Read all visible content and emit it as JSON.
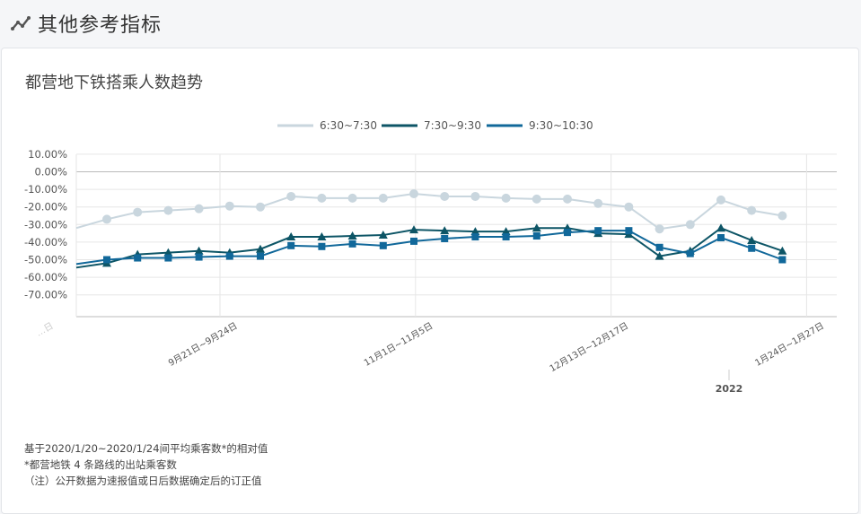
{
  "header": {
    "title": "其他参考指标",
    "icon": "line-chart-icon"
  },
  "card": {
    "title": "都营地下铁搭乘人数趋势"
  },
  "notes": [
    "基于2020/1/20~2020/1/24间平均乘客数*的相对值",
    "*都营地铁 4 条路线的出站乘客数",
    "（注）公开数据为速报值或日后数据确定后的订正值"
  ],
  "chart_data": {
    "type": "line",
    "y_ticks": [
      "10.00%",
      "0.00%",
      "-10.00%",
      "-20.00%",
      "-30.00%",
      "-40.00%",
      "-50.00%",
      "-60.00%",
      "-70.00%"
    ],
    "ylim": [
      -70,
      10
    ],
    "y_unit": "%",
    "x_labels": [
      {
        "index": 0,
        "text": "…日"
      },
      {
        "index": 5,
        "text": "9月21日~9月24日"
      },
      {
        "index": 11,
        "text": "11月1日~11月5日"
      },
      {
        "index": 17,
        "text": "12月13日~12月17日"
      },
      {
        "index": 23,
        "text": "1月24日~1月27日"
      }
    ],
    "year_marker": {
      "index": 20.6,
      "text": "2022"
    },
    "legend_position": "top-center",
    "colors": {
      "series1": "#c9d6de",
      "series2": "#0d5566",
      "series3": "#11689a",
      "grid": "#e6e6e6",
      "zero": "#bbbbbb"
    },
    "series": [
      {
        "name": "6:30~7:30",
        "marker": "circle",
        "values": [
          -32,
          -27,
          -23,
          -22,
          -21,
          -19.5,
          -20,
          -14,
          -15,
          -15,
          -15,
          -12.5,
          -14,
          -14,
          -15,
          -15.5,
          -15.5,
          -18,
          -20,
          -32.5,
          -30,
          -16,
          -22,
          -25
        ]
      },
      {
        "name": "7:30~9:30",
        "marker": "triangle",
        "values": [
          -54.5,
          -52,
          -47,
          -46,
          -45,
          -46,
          -44,
          -37,
          -37,
          -36.5,
          -36,
          -33,
          -33.5,
          -34,
          -34,
          -32,
          -32,
          -35,
          -35.5,
          -48,
          -45,
          -32,
          -39,
          -45
        ]
      },
      {
        "name": "9:30~10:30",
        "marker": "square",
        "values": [
          -52.5,
          -50,
          -49,
          -49,
          -48.5,
          -48,
          -48,
          -42,
          -42.5,
          -41,
          -42,
          -39.5,
          -38,
          -37,
          -37,
          -36.5,
          -34.5,
          -33.5,
          -33.5,
          -43,
          -46.5,
          -37.5,
          -43.5,
          -50
        ]
      }
    ]
  }
}
